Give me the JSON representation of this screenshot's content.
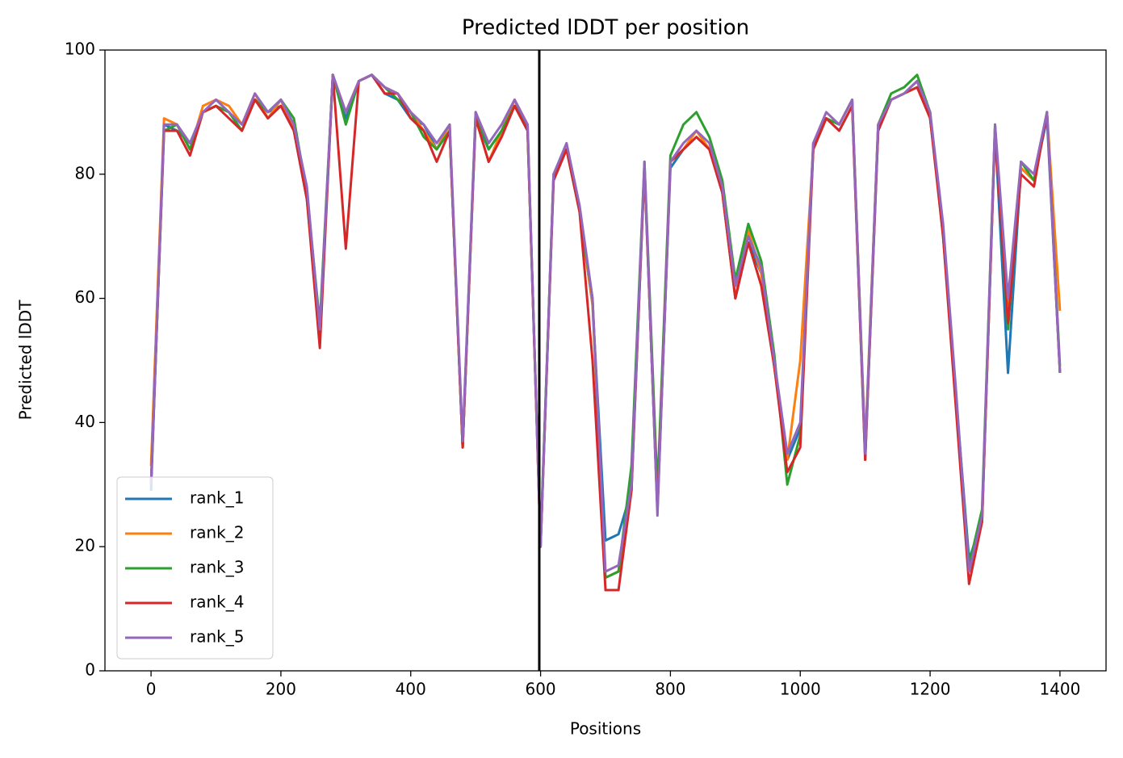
{
  "chart_data": {
    "type": "line",
    "title": "Predicted lDDT per position",
    "xlabel": "Positions",
    "ylabel": "Predicted lDDT",
    "x": [
      0,
      20,
      40,
      60,
      80,
      100,
      120,
      140,
      160,
      180,
      200,
      220,
      240,
      260,
      280,
      300,
      320,
      340,
      360,
      380,
      400,
      420,
      440,
      460,
      480,
      500,
      520,
      540,
      560,
      580,
      600,
      620,
      640,
      660,
      680,
      700,
      720,
      740,
      760,
      780,
      800,
      820,
      840,
      860,
      880,
      900,
      920,
      940,
      960,
      980,
      1000,
      1020,
      1040,
      1060,
      1080,
      1100,
      1120,
      1140,
      1160,
      1180,
      1200,
      1220,
      1240,
      1260,
      1280,
      1300,
      1320,
      1340,
      1360,
      1380,
      1400
    ],
    "series": [
      {
        "name": "rank_1",
        "color": "#1f77b4",
        "values": [
          29,
          88,
          87,
          85,
          90,
          91,
          90,
          87,
          92,
          90,
          91,
          87,
          76,
          54,
          96,
          89,
          95,
          96,
          93,
          92,
          89,
          88,
          84,
          87,
          36,
          89,
          84,
          87,
          92,
          87,
          21,
          79,
          84,
          74,
          59,
          21,
          22,
          29,
          81,
          26,
          81,
          84,
          86,
          84,
          77,
          60,
          69,
          64,
          49,
          34,
          39,
          84,
          89,
          87,
          91,
          34,
          87,
          92,
          93,
          95,
          89,
          71,
          44,
          18,
          24,
          87,
          48,
          81,
          79,
          89,
          48
        ]
      },
      {
        "name": "rank_2",
        "color": "#ff7f0e",
        "values": [
          33,
          89,
          88,
          84,
          91,
          92,
          91,
          88,
          93,
          89,
          92,
          87,
          77,
          54,
          96,
          90,
          95,
          96,
          94,
          93,
          90,
          87,
          84,
          88,
          36,
          89,
          82,
          87,
          92,
          88,
          20,
          80,
          84,
          74,
          59,
          15,
          16,
          31,
          81,
          26,
          82,
          84,
          87,
          84,
          77,
          60,
          71,
          64,
          49,
          34,
          50,
          84,
          89,
          88,
          92,
          36,
          88,
          92,
          93,
          95,
          90,
          71,
          44,
          16,
          24,
          87,
          59,
          81,
          79,
          90,
          58
        ]
      },
      {
        "name": "rank_3",
        "color": "#2ca02c",
        "values": [
          30,
          87,
          88,
          84,
          90,
          91,
          90,
          87,
          92,
          90,
          92,
          89,
          77,
          56,
          96,
          88,
          95,
          96,
          94,
          92,
          90,
          86,
          84,
          87,
          36,
          90,
          84,
          87,
          91,
          87,
          21,
          80,
          84,
          74,
          60,
          15,
          16,
          33,
          82,
          29,
          83,
          88,
          90,
          86,
          79,
          63,
          72,
          66,
          51,
          30,
          38,
          85,
          89,
          88,
          92,
          35,
          88,
          93,
          94,
          96,
          90,
          70,
          44,
          17,
          26,
          88,
          55,
          82,
          79,
          90,
          49
        ]
      },
      {
        "name": "rank_4",
        "color": "#d62728",
        "values": [
          30,
          87,
          87,
          83,
          90,
          91,
          89,
          87,
          92,
          89,
          91,
          87,
          76,
          52,
          96,
          68,
          95,
          96,
          93,
          93,
          89,
          87,
          82,
          87,
          36,
          89,
          82,
          86,
          91,
          87,
          20,
          79,
          84,
          74,
          50,
          13,
          13,
          29,
          81,
          26,
          82,
          84,
          86,
          84,
          77,
          60,
          69,
          62,
          49,
          32,
          36,
          84,
          89,
          87,
          91,
          34,
          87,
          92,
          93,
          94,
          89,
          70,
          42,
          14,
          24,
          87,
          56,
          80,
          78,
          90,
          48
        ]
      },
      {
        "name": "rank_5",
        "color": "#9467bd",
        "values": [
          30,
          88,
          88,
          85,
          90,
          92,
          90,
          88,
          93,
          90,
          92,
          88,
          78,
          55,
          96,
          90,
          95,
          96,
          94,
          93,
          90,
          88,
          85,
          88,
          37,
          90,
          85,
          88,
          92,
          88,
          20,
          80,
          85,
          75,
          60,
          16,
          17,
          30,
          82,
          25,
          82,
          85,
          87,
          85,
          78,
          62,
          70,
          65,
          50,
          35,
          40,
          85,
          90,
          88,
          92,
          35,
          88,
          92,
          93,
          95,
          90,
          72,
          45,
          16,
          25,
          88,
          60,
          82,
          80,
          90,
          48
        ]
      }
    ],
    "vline": 598,
    "vline_color": "#000000",
    "xlim": [
      -71,
      1471
    ],
    "ylim": [
      0,
      100
    ],
    "xticks": [
      0,
      200,
      400,
      600,
      800,
      1000,
      1200,
      1400
    ],
    "yticks": [
      0,
      20,
      40,
      60,
      80,
      100
    ],
    "legend": "lower left"
  }
}
